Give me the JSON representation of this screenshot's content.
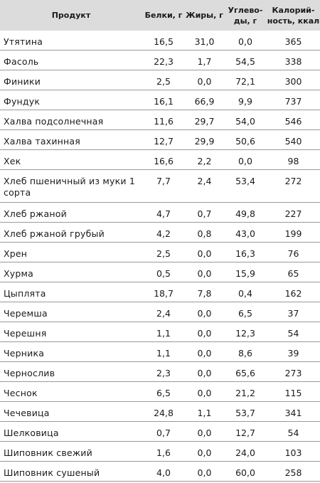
{
  "table": {
    "headers": {
      "name": "Продукт",
      "protein": "Белки, г",
      "fat": "Жиры, г",
      "carbs": "Углево-\nды, г",
      "kcal": "Калорий-\nность, ккал"
    },
    "rows": [
      {
        "name": "Утятина",
        "protein": "16,5",
        "fat": "31,0",
        "carbs": "0,0",
        "kcal": "365"
      },
      {
        "name": "Фасоль",
        "protein": "22,3",
        "fat": "1,7",
        "carbs": "54,5",
        "kcal": "338"
      },
      {
        "name": "Финики",
        "protein": "2,5",
        "fat": "0,0",
        "carbs": "72,1",
        "kcal": "300"
      },
      {
        "name": "Фундук",
        "protein": "16,1",
        "fat": "66,9",
        "carbs": "9,9",
        "kcal": "737"
      },
      {
        "name": "Халва подсолнечная",
        "protein": "11,6",
        "fat": "29,7",
        "carbs": "54,0",
        "kcal": "546"
      },
      {
        "name": "Халва тахинная",
        "protein": "12,7",
        "fat": "29,9",
        "carbs": "50,6",
        "kcal": "540"
      },
      {
        "name": "Хек",
        "protein": "16,6",
        "fat": "2,2",
        "carbs": "0,0",
        "kcal": "98"
      },
      {
        "name": "Хлеб пшеничный из муки 1 сорта",
        "protein": "7,7",
        "fat": "2,4",
        "carbs": "53,4",
        "kcal": "272"
      },
      {
        "name": "Хлеб ржаной",
        "protein": "4,7",
        "fat": "0,7",
        "carbs": "49,8",
        "kcal": "227"
      },
      {
        "name": "Хлеб ржаной грубый",
        "protein": "4,2",
        "fat": "0,8",
        "carbs": "43,0",
        "kcal": "199"
      },
      {
        "name": "Хрен",
        "protein": "2,5",
        "fat": "0,0",
        "carbs": "16,3",
        "kcal": "76"
      },
      {
        "name": "Хурма",
        "protein": "0,5",
        "fat": "0,0",
        "carbs": "15,9",
        "kcal": "65"
      },
      {
        "name": "Цыплята",
        "protein": "18,7",
        "fat": "7,8",
        "carbs": "0,4",
        "kcal": "162"
      },
      {
        "name": "Черемша",
        "protein": "2,4",
        "fat": "0,0",
        "carbs": "6,5",
        "kcal": "37"
      },
      {
        "name": "Черешня",
        "protein": "1,1",
        "fat": "0,0",
        "carbs": "12,3",
        "kcal": "54"
      },
      {
        "name": "Черника",
        "protein": "1,1",
        "fat": "0,0",
        "carbs": "8,6",
        "kcal": "39"
      },
      {
        "name": "Чернослив",
        "protein": "2,3",
        "fat": "0,0",
        "carbs": "65,6",
        "kcal": "273"
      },
      {
        "name": "Чеснок",
        "protein": "6,5",
        "fat": "0,0",
        "carbs": "21,2",
        "kcal": "115"
      },
      {
        "name": "Чечевица",
        "protein": "24,8",
        "fat": "1,1",
        "carbs": "53,7",
        "kcal": "341"
      },
      {
        "name": "Шелковица",
        "protein": "0,7",
        "fat": "0,0",
        "carbs": "12,7",
        "kcal": "54"
      },
      {
        "name": "Шиповник свежий",
        "protein": "1,6",
        "fat": "0,0",
        "carbs": "24,0",
        "kcal": "103"
      },
      {
        "name": "Шиповник сушеный",
        "protein": "4,0",
        "fat": "0,0",
        "carbs": "60,0",
        "kcal": "258"
      }
    ]
  }
}
